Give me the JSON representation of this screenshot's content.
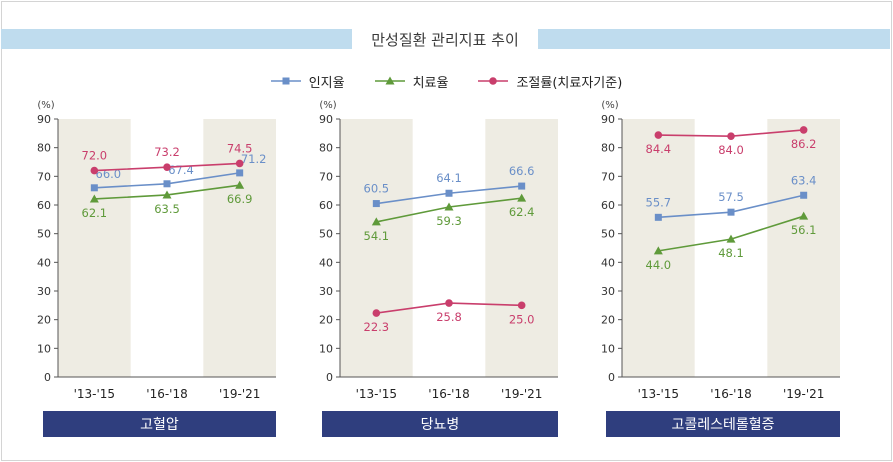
{
  "title": "만성질환 관리지표 추이",
  "colors": {
    "title_band": "#bfdcee",
    "panel_shade": "#eeece3",
    "category_box": "#2f3e7e",
    "axis": "#555555"
  },
  "chart_data": [
    {
      "type": "line",
      "category_label": "고혈압",
      "ylabel": "(%)",
      "ylim": [
        0,
        90
      ],
      "yticks": [
        0,
        10,
        20,
        30,
        40,
        50,
        60,
        70,
        80,
        90
      ],
      "categories": [
        "'13-'15",
        "'16-'18",
        "'19-'21"
      ],
      "shaded_categories": [
        0,
        2
      ],
      "series": [
        {
          "name": "인지율",
          "color": "#6a8fc8",
          "marker": "square",
          "values": [
            66.0,
            67.4,
            71.2
          ],
          "labels": [
            "66.0",
            "67.4",
            "71.2"
          ]
        },
        {
          "name": "치료율",
          "color": "#5f9a3a",
          "marker": "triangle",
          "values": [
            62.1,
            63.5,
            66.9
          ],
          "labels": [
            "62.1",
            "63.5",
            "66.9"
          ]
        },
        {
          "name": "조절률(치료자기준)",
          "color": "#c93e6c",
          "marker": "circle",
          "values": [
            72.0,
            73.2,
            74.5
          ],
          "labels": [
            "72.0",
            "73.2",
            "74.5"
          ]
        }
      ]
    },
    {
      "type": "line",
      "category_label": "당뇨병",
      "ylabel": "(%)",
      "ylim": [
        0,
        90
      ],
      "yticks": [
        0,
        10,
        20,
        30,
        40,
        50,
        60,
        70,
        80,
        90
      ],
      "categories": [
        "'13-'15",
        "'16-'18",
        "'19-'21"
      ],
      "shaded_categories": [
        0,
        2
      ],
      "series": [
        {
          "name": "인지율",
          "color": "#6a8fc8",
          "marker": "square",
          "values": [
            60.5,
            64.1,
            66.6
          ],
          "labels": [
            "60.5",
            "64.1",
            "66.6"
          ]
        },
        {
          "name": "치료율",
          "color": "#5f9a3a",
          "marker": "triangle",
          "values": [
            54.1,
            59.3,
            62.4
          ],
          "labels": [
            "54.1",
            "59.3",
            "62.4"
          ]
        },
        {
          "name": "조절률(치료자기준)",
          "color": "#c93e6c",
          "marker": "circle",
          "values": [
            22.3,
            25.8,
            25.0
          ],
          "labels": [
            "22.3",
            "25.8",
            "25.0"
          ]
        }
      ]
    },
    {
      "type": "line",
      "category_label": "고콜레스테롤혈증",
      "ylabel": "(%)",
      "ylim": [
        0,
        90
      ],
      "yticks": [
        0,
        10,
        20,
        30,
        40,
        50,
        60,
        70,
        80,
        90
      ],
      "categories": [
        "'13-'15",
        "'16-'18",
        "'19-'21"
      ],
      "shaded_categories": [
        0,
        2
      ],
      "series": [
        {
          "name": "인지율",
          "color": "#6a8fc8",
          "marker": "square",
          "values": [
            55.7,
            57.5,
            63.4
          ],
          "labels": [
            "55.7",
            "57.5",
            "63.4"
          ]
        },
        {
          "name": "치료율",
          "color": "#5f9a3a",
          "marker": "triangle",
          "values": [
            44.0,
            48.1,
            56.1
          ],
          "labels": [
            "44.0",
            "48.1",
            "56.1"
          ]
        },
        {
          "name": "조절률(치료자기준)",
          "color": "#c93e6c",
          "marker": "circle",
          "values": [
            84.4,
            84.0,
            86.2
          ],
          "labels": [
            "84.4",
            "84.0",
            "86.2"
          ]
        }
      ]
    }
  ],
  "legend": [
    {
      "name": "인지율",
      "color": "#6a8fc8",
      "marker": "square"
    },
    {
      "name": "치료율",
      "color": "#5f9a3a",
      "marker": "triangle"
    },
    {
      "name": "조절률(치료자기준)",
      "color": "#c93e6c",
      "marker": "circle"
    }
  ]
}
